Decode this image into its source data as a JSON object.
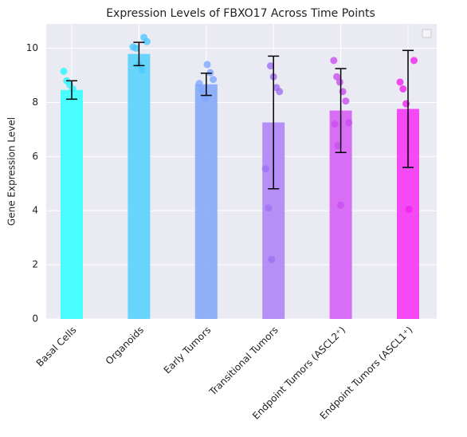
{
  "chart_data": {
    "type": "bar",
    "title": "Expression Levels of FBXO17 Across Time Points",
    "y_label": "Gene Expression Level",
    "categories": [
      "Basal Cells",
      "Organoids",
      "Early Tumors",
      "Transitional Tumors",
      "Endpoint Tumors (ASCL2⁺)",
      "Endpoint Tumors (ASCL1⁺)"
    ],
    "values": [
      8.46,
      9.79,
      8.67,
      7.26,
      7.7,
      7.76
    ],
    "errors": [
      0.34,
      0.43,
      0.41,
      2.45,
      1.55,
      2.16
    ],
    "colors": [
      "#40ffff",
      "#60d4fb",
      "#8aacf8",
      "#b28af5",
      "#d766f5",
      "#f540f5"
    ],
    "point_colors": [
      "#2af5ff",
      "#4cc8ff",
      "#7ea6ff",
      "#9f6ff2",
      "#c94ff0",
      "#f020ee"
    ],
    "points": [
      [
        9.15,
        8.8,
        8.65,
        8.5
      ],
      [
        10.4,
        10.25,
        10.05,
        10.0,
        9.4,
        9.2
      ],
      [
        9.4,
        9.1,
        8.85,
        8.7,
        8.45,
        8.15
      ],
      [
        9.35,
        8.95,
        8.55,
        8.4,
        5.55,
        4.1,
        2.2
      ],
      [
        9.55,
        8.95,
        8.75,
        8.4,
        8.05,
        7.25,
        7.2,
        6.4,
        4.2
      ],
      [
        9.55,
        8.75,
        8.5,
        7.95,
        4.05
      ]
    ],
    "ylim": [
      0,
      10.9
    ],
    "yticks": [
      0,
      2,
      4,
      6,
      8,
      10
    ],
    "grid": true
  }
}
